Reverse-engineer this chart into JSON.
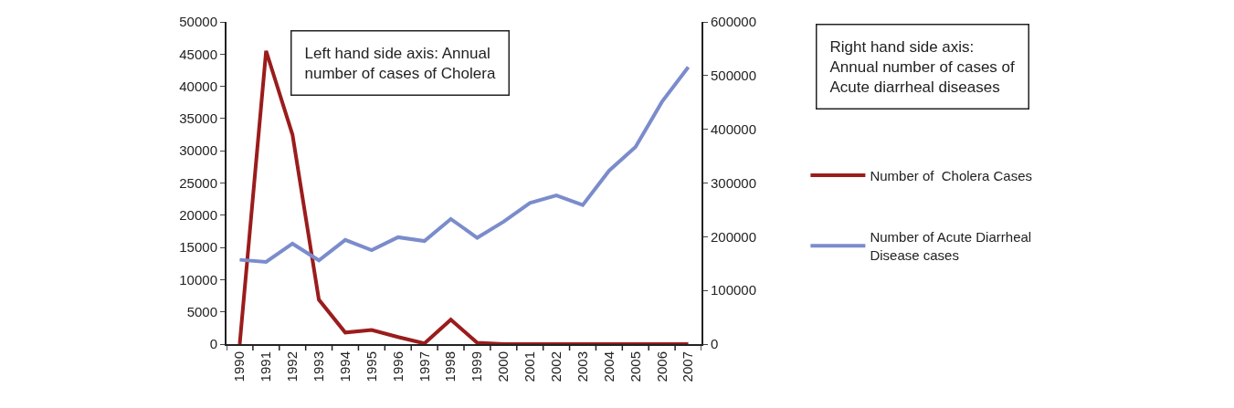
{
  "chart_data": {
    "type": "line",
    "categories": [
      "1990",
      "1991",
      "1992",
      "1993",
      "1994",
      "1995",
      "1996",
      "1997",
      "1998",
      "1999",
      "2000",
      "2001",
      "2002",
      "2003",
      "2004",
      "2005",
      "2006",
      "2007"
    ],
    "series": [
      {
        "name": "Number of  Cholera Cases",
        "color": "#9b1c1c",
        "values": [
          0,
          45500,
          32500,
          6900,
          1800,
          2200,
          1100,
          100,
          3800,
          200,
          0,
          0,
          0,
          0,
          0,
          0,
          0,
          0
        ]
      },
      {
        "name": "Number of Acute Diarrheal Disease cases",
        "color": "#7b8ccc",
        "axis": "y2",
        "values": [
          157000,
          153000,
          187000,
          156000,
          194000,
          175000,
          199000,
          192000,
          233000,
          198000,
          228000,
          263000,
          277000,
          259000,
          323000,
          367000,
          451000,
          516000
        ]
      }
    ],
    "ylim": [
      0,
      50000
    ],
    "yticks": [
      0,
      5000,
      10000,
      15000,
      20000,
      25000,
      30000,
      35000,
      40000,
      45000,
      50000
    ],
    "y2lim": [
      0,
      600000
    ],
    "y2ticks": [
      0,
      100000,
      200000,
      300000,
      400000,
      500000,
      600000
    ],
    "annotations": [
      "Left hand side axis: Annual number of cases of Cholera",
      "Right hand side axis: Annual number of cases of Acute diarrheal diseases"
    ],
    "legend": "right",
    "marker": "none",
    "line_style": "solid"
  }
}
